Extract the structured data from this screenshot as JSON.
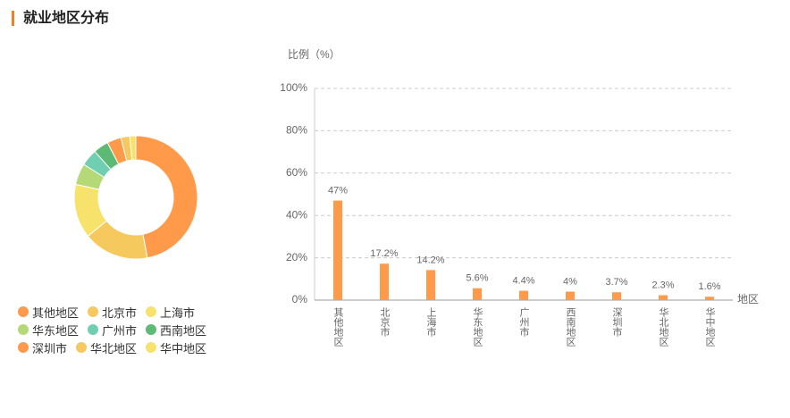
{
  "header": {
    "title": "就业地区分布"
  },
  "chart_data": [
    {
      "type": "pie",
      "categories": [
        "其他地区",
        "北京市",
        "上海市",
        "华东地区",
        "广州市",
        "西南地区",
        "深圳市",
        "华北地区",
        "华中地区"
      ],
      "values": [
        47,
        17.2,
        14.2,
        5.6,
        4.4,
        4,
        3.7,
        2.3,
        1.6
      ],
      "colors": [
        "#ff9a4a",
        "#f6c95e",
        "#f7e36b",
        "#b5d977",
        "#6fcfb0",
        "#5dba74",
        "#ff9a4a",
        "#f6c95e",
        "#f7e36b"
      ]
    },
    {
      "type": "bar",
      "ylabel": "比例（%）",
      "xlabel": "地区",
      "categories": [
        "其他地区",
        "北京市",
        "上海市",
        "华东地区",
        "广州市",
        "西南地区",
        "深圳市",
        "华北地区",
        "华中地区"
      ],
      "values": [
        47,
        17.2,
        14.2,
        5.6,
        4.4,
        4,
        3.7,
        2.3,
        1.6
      ],
      "value_labels": [
        "47%",
        "17.2%",
        "14.2%",
        "5.6%",
        "4.4%",
        "4%",
        "3.7%",
        "2.3%",
        "1.6%"
      ],
      "color": "#ff9a4a",
      "ylim": [
        0,
        100
      ],
      "yticks": [
        {
          "value": 0,
          "label": "0%"
        },
        {
          "value": 20,
          "label": "20%"
        },
        {
          "value": 40,
          "label": "40%"
        },
        {
          "value": 60,
          "label": "60%"
        },
        {
          "value": 80,
          "label": "80%"
        },
        {
          "value": 100,
          "label": "100%"
        }
      ],
      "grid": true
    }
  ]
}
